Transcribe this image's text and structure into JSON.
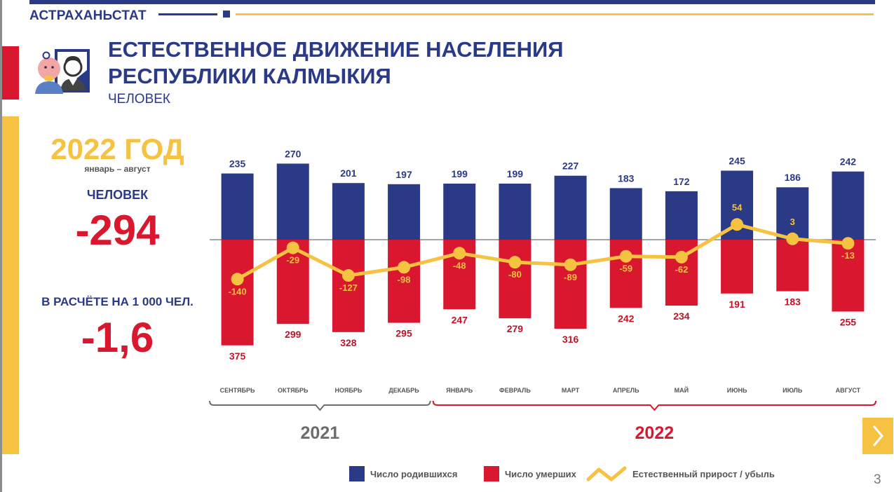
{
  "header": {
    "brand": "АСТРАХАНЬСТАТ"
  },
  "title": {
    "line1": "ЕСТЕСТВЕННОЕ ДВИЖЕНИЕ НАСЕЛЕНИЯ",
    "line2": "РЕСПУБЛИКИ КАЛМЫКИЯ",
    "subtitle": "ЧЕЛОВЕК"
  },
  "summary": {
    "year": "2022 ГОД",
    "period": "январь – август",
    "people_label": "ЧЕЛОВЕК",
    "total": "-294",
    "per1000_label": "В РАСЧЁТЕ НА 1 000 ЧЕЛ.",
    "per1000": "-1,6"
  },
  "colors": {
    "births": "#2b3a86",
    "deaths": "#d9172e",
    "growth": "#f5c242",
    "year2021": "#6d6d6d",
    "year2022": "#d9172e"
  },
  "chart_data": {
    "type": "bar",
    "categories": [
      "СЕНТЯБРЬ",
      "ОКТЯБРЬ",
      "НОЯБРЬ",
      "ДЕКАБРЬ",
      "ЯНВАРЬ",
      "ФЕВРАЛЬ",
      "МАРТ",
      "АПРЕЛЬ",
      "МАЙ",
      "ИЮНЬ",
      "ИЮЛЬ",
      "АВГУСТ"
    ],
    "series": [
      {
        "name": "Число родившихся",
        "type": "bar",
        "values": [
          235,
          270,
          201,
          197,
          199,
          199,
          227,
          183,
          172,
          245,
          186,
          242
        ]
      },
      {
        "name": "Число умерших",
        "type": "bar",
        "values": [
          375,
          299,
          328,
          295,
          247,
          279,
          316,
          242,
          234,
          191,
          183,
          255
        ]
      },
      {
        "name": "Естественный прирост / убыль",
        "type": "line",
        "values": [
          -140,
          -29,
          -127,
          -98,
          -48,
          -80,
          -89,
          -59,
          -62,
          54,
          3,
          -13
        ]
      }
    ],
    "groups": [
      {
        "label": "2021",
        "from": 0,
        "to": 3
      },
      {
        "label": "2022",
        "from": 4,
        "to": 11
      }
    ],
    "legend": "bottom"
  },
  "page": {
    "number": "3"
  }
}
